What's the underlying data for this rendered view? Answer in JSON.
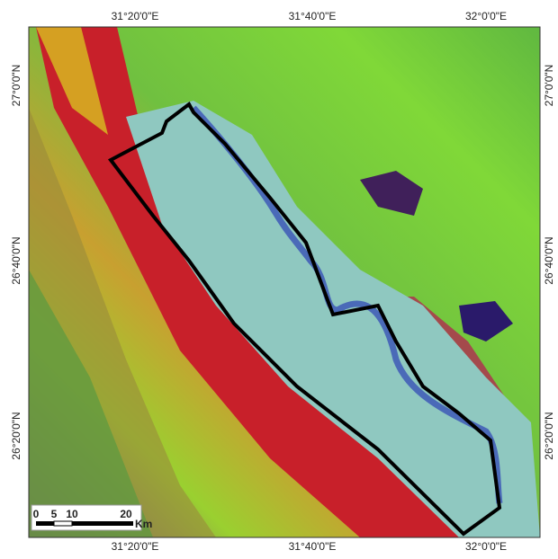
{
  "map": {
    "top_labels": [
      "31°20'0\"E",
      "31°40'0\"E",
      "32°0'0\"E"
    ],
    "bottom_labels": [
      "31°20'0\"E",
      "31°40'0\"E",
      "32°0'0\"E"
    ],
    "left_labels": [
      "27°0'0\"N",
      "26°40'0\"N",
      "26°20'0\"N"
    ],
    "right_labels": [
      "27°0'0\"N",
      "26°40'0\"N",
      "26°20'0\"N"
    ],
    "scale_bar": {
      "labels": [
        "0",
        "5",
        "10",
        "20"
      ],
      "unit": "Km"
    }
  }
}
